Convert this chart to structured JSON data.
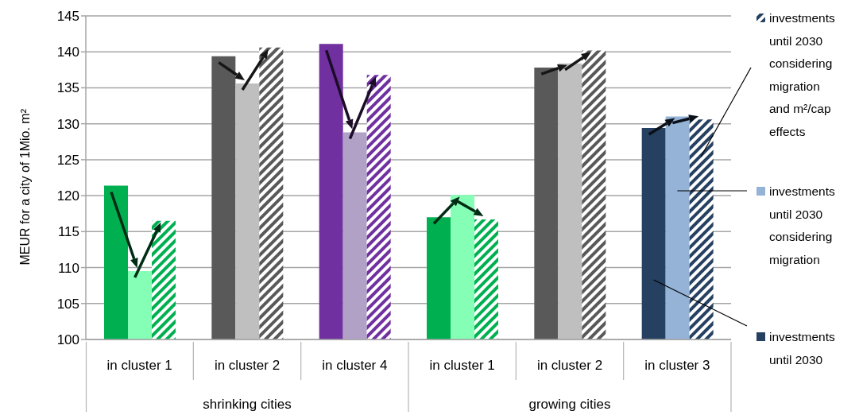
{
  "chart_data": {
    "type": "bar",
    "ylabel": "MEUR for a city of 1Mio. m²",
    "categories": [
      "in cluster 1",
      "in cluster 2",
      "in cluster 4",
      "in cluster 1",
      "in cluster 2",
      "in cluster 3"
    ],
    "series": [
      {
        "name": "investments until 2030",
        "colors": [
          "#00b050",
          "#595959",
          "#7030a0",
          "#00b050",
          "#595959",
          "#264061"
        ],
        "values": [
          121.4,
          139.4,
          141.1,
          117.0,
          137.8,
          129.4
        ]
      },
      {
        "name": "investments until 2030 considering migration",
        "colors": [
          "#85ffb5",
          "#bfbfbf",
          "#b2a1c7",
          "#85ffb5",
          "#bfbfbf",
          "#95b3d7"
        ],
        "values": [
          109.5,
          135.6,
          128.8,
          120.1,
          138.4,
          131.0
        ]
      },
      {
        "name": "investments until 2030 considering migration and m²/cap effects",
        "colors": [
          "#00b050",
          "#595959",
          "#7030a0",
          "#00b050",
          "#595959",
          "#264061"
        ],
        "values": [
          116.5,
          140.6,
          136.8,
          116.7,
          140.2,
          130.6
        ]
      }
    ],
    "annotations": [
      "shrinking cities",
      "growing cities"
    ],
    "ylim": [
      100,
      145
    ],
    "yticks": [
      100,
      105,
      110,
      115,
      120,
      125,
      130,
      135,
      140,
      145
    ],
    "grid": "y",
    "legend": "right"
  }
}
